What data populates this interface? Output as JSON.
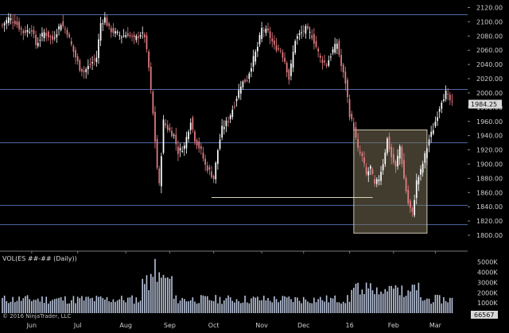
{
  "chart_data": [
    {
      "type": "candlestick",
      "instrument": "ES ##-## (Daily)",
      "ylim": [
        1790,
        2130
      ],
      "y_ticks": [
        "2120.00",
        "2100.00",
        "2080.00",
        "2060.00",
        "2040.00",
        "2020.00",
        "2000.00",
        "1980.00",
        "1960.00",
        "1940.00",
        "1920.00",
        "1900.00",
        "1880.00",
        "1860.00",
        "1840.00",
        "1820.00",
        "1800.00"
      ],
      "x_tick_labels": [
        {
          "label": "Jun",
          "day": 14
        },
        {
          "label": "Jul",
          "day": 36
        },
        {
          "label": "Aug",
          "day": 59
        },
        {
          "label": "Sep",
          "day": 80
        },
        {
          "label": "Oct",
          "day": 101
        },
        {
          "label": "Nov",
          "day": 124
        },
        {
          "label": "Dec",
          "day": 144
        },
        {
          "label": "16",
          "day": 166
        },
        {
          "label": "Feb",
          "day": 187
        },
        {
          "label": "Mar",
          "day": 207
        }
      ],
      "last_price": "1984.25",
      "horizontal_lines": [
        2110,
        2005,
        1930,
        1842,
        1815
      ],
      "support_line": {
        "from_day": 100,
        "to_day": 177,
        "price": 1853
      },
      "highlight_box": {
        "from_day": 168,
        "to_day": 203,
        "price_low": 1803,
        "price_high": 1948
      },
      "candle_colors": {
        "up": "#ffffff",
        "down": "#e87f84"
      },
      "close_path": [
        [
          0,
          2095
        ],
        [
          3,
          2105
        ],
        [
          6,
          2100
        ],
        [
          10,
          2085
        ],
        [
          14,
          2090
        ],
        [
          16,
          2068
        ],
        [
          20,
          2085
        ],
        [
          24,
          2075
        ],
        [
          28,
          2098
        ],
        [
          31,
          2085
        ],
        [
          34,
          2058
        ],
        [
          37,
          2035
        ],
        [
          39,
          2030
        ],
        [
          42,
          2040
        ],
        [
          45,
          2050
        ],
        [
          47,
          2098
        ],
        [
          49,
          2105
        ],
        [
          51,
          2090
        ],
        [
          54,
          2084
        ],
        [
          57,
          2080
        ],
        [
          60,
          2083
        ],
        [
          63,
          2075
        ],
        [
          66,
          2083
        ],
        [
          68,
          2080
        ],
        [
          70,
          2035
        ],
        [
          72,
          1970
        ],
        [
          74,
          1895
        ],
        [
          75,
          1870
        ],
        [
          77,
          1960
        ],
        [
          79,
          1950
        ],
        [
          82,
          1940
        ],
        [
          84,
          1917
        ],
        [
          87,
          1925
        ],
        [
          90,
          1962
        ],
        [
          92,
          1935
        ],
        [
          95,
          1918
        ],
        [
          97,
          1898
        ],
        [
          99,
          1890
        ],
        [
          101,
          1880
        ],
        [
          103,
          1920
        ],
        [
          105,
          1950
        ],
        [
          108,
          1962
        ],
        [
          111,
          1985
        ],
        [
          114,
          2012
        ],
        [
          117,
          2020
        ],
        [
          120,
          2048
        ],
        [
          122,
          2065
        ],
        [
          124,
          2090
        ],
        [
          127,
          2085
        ],
        [
          130,
          2065
        ],
        [
          133,
          2060
        ],
        [
          135,
          2045
        ],
        [
          137,
          2020
        ],
        [
          140,
          2075
        ],
        [
          142,
          2082
        ],
        [
          145,
          2090
        ],
        [
          148,
          2080
        ],
        [
          150,
          2065
        ],
        [
          152,
          2048
        ],
        [
          155,
          2040
        ],
        [
          158,
          2060
        ],
        [
          160,
          2070
        ],
        [
          162,
          2038
        ],
        [
          164,
          2015
        ],
        [
          166,
          1970
        ],
        [
          168,
          1950
        ],
        [
          170,
          1920
        ],
        [
          172,
          1910
        ],
        [
          174,
          1885
        ],
        [
          176,
          1895
        ],
        [
          178,
          1870
        ],
        [
          180,
          1880
        ],
        [
          182,
          1902
        ],
        [
          184,
          1935
        ],
        [
          186,
          1910
        ],
        [
          188,
          1895
        ],
        [
          190,
          1925
        ],
        [
          192,
          1880
        ],
        [
          194,
          1845
        ],
        [
          196,
          1830
        ],
        [
          198,
          1875
        ],
        [
          200,
          1890
        ],
        [
          202,
          1912
        ],
        [
          204,
          1935
        ],
        [
          206,
          1950
        ],
        [
          208,
          1970
        ],
        [
          210,
          1990
        ],
        [
          212,
          2000
        ],
        [
          215,
          1984.25
        ]
      ],
      "volume_ylim": [
        0,
        6000000
      ],
      "volume_ticks": [
        "5000K",
        "4000K",
        "3000K",
        "2000K",
        "1000K"
      ],
      "volume_last": "66567",
      "volume_title": "VOL(ES ##-## (Daily))",
      "copyright": "© 2016 NinjaTrader, LLC"
    }
  ]
}
